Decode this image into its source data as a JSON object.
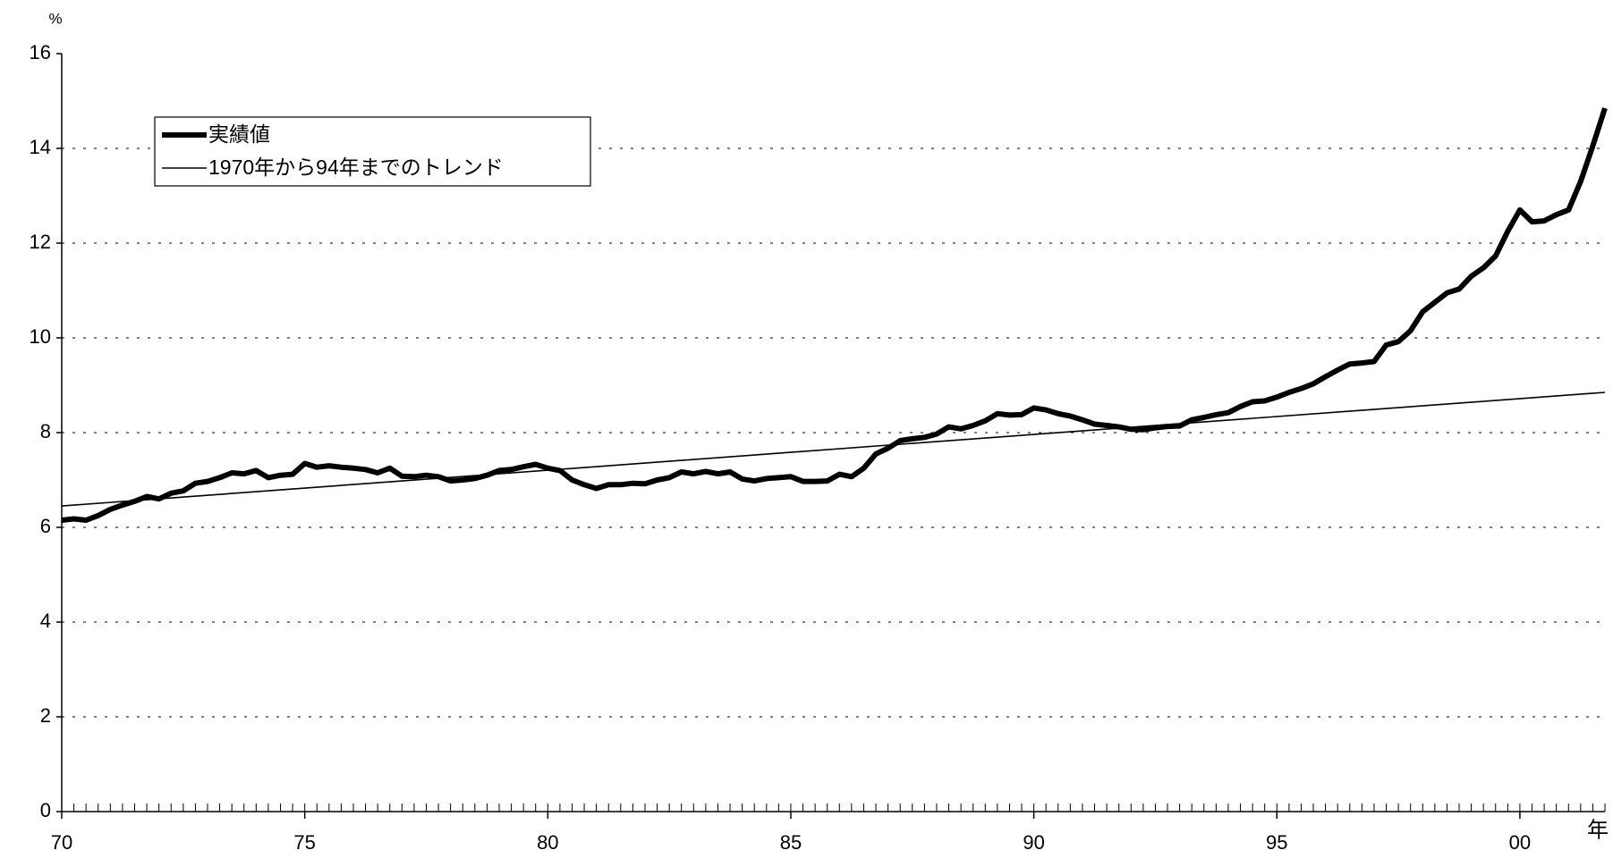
{
  "chart_data": {
    "type": "line",
    "y_label": "%",
    "x_label": "年",
    "x": [
      1970,
      1970.25,
      1970.5,
      1970.75,
      1971,
      1971.25,
      1971.5,
      1971.75,
      1972,
      1972.25,
      1972.5,
      1972.75,
      1973,
      1973.25,
      1973.5,
      1973.75,
      1974,
      1974.25,
      1974.5,
      1974.75,
      1975,
      1975.25,
      1975.5,
      1975.75,
      1976,
      1976.25,
      1976.5,
      1976.75,
      1977,
      1977.25,
      1977.5,
      1977.75,
      1978,
      1978.25,
      1978.5,
      1978.75,
      1979,
      1979.25,
      1979.5,
      1979.75,
      1980,
      1980.25,
      1980.5,
      1980.75,
      1981,
      1981.25,
      1981.5,
      1981.75,
      1982,
      1982.25,
      1982.5,
      1982.75,
      1983,
      1983.25,
      1983.5,
      1983.75,
      1984,
      1984.25,
      1984.5,
      1984.75,
      1985,
      1985.25,
      1985.5,
      1985.75,
      1986,
      1986.25,
      1986.5,
      1986.75,
      1987,
      1987.25,
      1987.5,
      1987.75,
      1988,
      1988.25,
      1988.5,
      1988.75,
      1989,
      1989.25,
      1989.5,
      1989.75,
      1990,
      1990.25,
      1990.5,
      1990.75,
      1991,
      1991.25,
      1991.5,
      1991.75,
      1992,
      1992.25,
      1992.5,
      1992.75,
      1993,
      1993.25,
      1993.5,
      1993.75,
      1994,
      1994.25,
      1994.5,
      1994.75,
      1995,
      1995.25,
      1995.5,
      1995.75,
      1996,
      1996.25,
      1996.5,
      1996.75,
      1997,
      1997.25,
      1997.5,
      1997.75,
      1998,
      1998.25,
      1998.5,
      1998.75,
      1999,
      1999.25,
      1999.5,
      1999.75,
      2000,
      2000.25,
      2000.5,
      2000.75,
      2001,
      2001.25,
      2001.5,
      2001.75
    ],
    "series": [
      {
        "name": "実績値",
        "color": "#000000",
        "values": [
          6.15,
          6.18,
          6.15,
          6.25,
          6.38,
          6.47,
          6.55,
          6.65,
          6.6,
          6.72,
          6.77,
          6.93,
          6.97,
          7.05,
          7.15,
          7.13,
          7.2,
          7.05,
          7.1,
          7.12,
          7.35,
          7.27,
          7.3,
          7.27,
          7.25,
          7.22,
          7.15,
          7.25,
          7.08,
          7.07,
          7.1,
          7.07,
          6.98,
          7.0,
          7.03,
          7.1,
          7.2,
          7.22,
          7.28,
          7.33,
          7.25,
          7.2,
          7.0,
          6.9,
          6.82,
          6.9,
          6.9,
          6.93,
          6.92,
          7.0,
          7.05,
          7.17,
          7.13,
          7.18,
          7.13,
          7.17,
          7.02,
          6.98,
          7.03,
          7.05,
          7.07,
          6.97,
          6.97,
          6.98,
          7.12,
          7.07,
          7.25,
          7.55,
          7.67,
          7.83,
          7.87,
          7.9,
          7.97,
          8.12,
          8.08,
          8.15,
          8.25,
          8.4,
          8.37,
          8.38,
          8.52,
          8.48,
          8.4,
          8.35,
          8.27,
          8.18,
          8.15,
          8.12,
          8.07,
          8.06,
          8.1,
          8.13,
          8.14,
          8.27,
          8.32,
          8.38,
          8.42,
          8.55,
          8.65,
          8.67,
          8.75,
          8.85,
          8.93,
          9.03,
          9.18,
          9.32,
          9.45,
          9.47,
          9.5,
          9.85,
          9.92,
          10.15,
          10.55,
          10.75,
          10.95,
          11.03,
          11.3,
          11.48,
          11.73,
          12.25,
          12.7,
          12.45,
          12.47,
          12.6,
          12.7,
          13.3,
          14.05,
          14.85
        ]
      },
      {
        "name": "1970年から94年までのトレンド",
        "color": "#000000",
        "x": [
          1970,
          2001.75
        ],
        "values": [
          6.45,
          8.85
        ]
      }
    ],
    "xlim": [
      1970,
      2001.75
    ],
    "xticks": [
      {
        "value": 1970,
        "label": "70"
      },
      {
        "value": 1975,
        "label": "75"
      },
      {
        "value": 1980,
        "label": "80"
      },
      {
        "value": 1985,
        "label": "85"
      },
      {
        "value": 1990,
        "label": "90"
      },
      {
        "value": 1995,
        "label": "95"
      },
      {
        "value": 2000,
        "label": "00"
      }
    ],
    "ylim": [
      0,
      16
    ],
    "yticks": [
      0,
      2,
      4,
      6,
      8,
      10,
      12,
      14,
      16
    ],
    "grid": true,
    "legend": "upper left"
  }
}
